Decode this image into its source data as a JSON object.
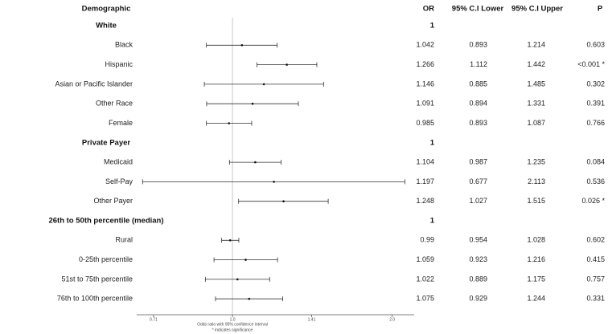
{
  "chart_data": {
    "type": "forest",
    "columns": [
      "Demographic",
      "OR",
      "95% C.I Lower",
      "95% C.I Upper",
      "P"
    ],
    "rows": [
      {
        "label": "White",
        "or": 1
      },
      {
        "label": "Black",
        "or": 1.042,
        "lower": 0.893,
        "upper": 1.214,
        "p": 0.603
      },
      {
        "label": "Hispanic",
        "or": 1.266,
        "lower": 1.112,
        "upper": 1.442,
        "p": "<0.001 *"
      },
      {
        "label": "Asian or Pacific Islander",
        "or": 1.146,
        "lower": 0.885,
        "upper": 1.485,
        "p": 0.302
      },
      {
        "label": "Other Race",
        "or": 1.091,
        "lower": 0.894,
        "upper": 1.331,
        "p": 0.391
      },
      {
        "label": "Female",
        "or": 0.985,
        "lower": 0.893,
        "upper": 1.087,
        "p": 0.766
      },
      {
        "label": "Private Payer",
        "or": 1
      },
      {
        "label": "Medicaid",
        "or": 1.104,
        "lower": 0.987,
        "upper": 1.235,
        "p": 0.084
      },
      {
        "label": "Self-Pay",
        "or": 1.197,
        "lower": 0.677,
        "upper": 2.113,
        "p": 0.536
      },
      {
        "label": "Other Payer",
        "or": 1.248,
        "lower": 1.027,
        "upper": 1.515,
        "p": "0.026 *"
      },
      {
        "label": "26th to 50th percentile (median)",
        "or": 1
      },
      {
        "label": "Rural",
        "or": 0.99,
        "lower": 0.954,
        "upper": 1.028,
        "p": 0.602
      },
      {
        "label": "0-25th percentile",
        "or": 1.059,
        "lower": 0.923,
        "upper": 1.216,
        "p": 0.415
      },
      {
        "label": "51st to 75th percentile",
        "or": 1.022,
        "lower": 0.889,
        "upper": 1.175,
        "p": 0.757
      },
      {
        "label": "76th to 100th percentile",
        "or": 1.075,
        "lower": 0.929,
        "upper": 1.244,
        "p": 0.331
      }
    ],
    "log_scale": true,
    "xlim": [
      0.66,
      2.2
    ],
    "xticks": [
      0.71,
      {
        "value": 1,
        "label": "1.0"
      },
      1.41,
      {
        "value": 2,
        "label": "2.0"
      }
    ],
    "reference_line": 1,
    "xlabel": "Odds ratio with 95% confidence interval",
    "footnote": "* indicates significance"
  }
}
